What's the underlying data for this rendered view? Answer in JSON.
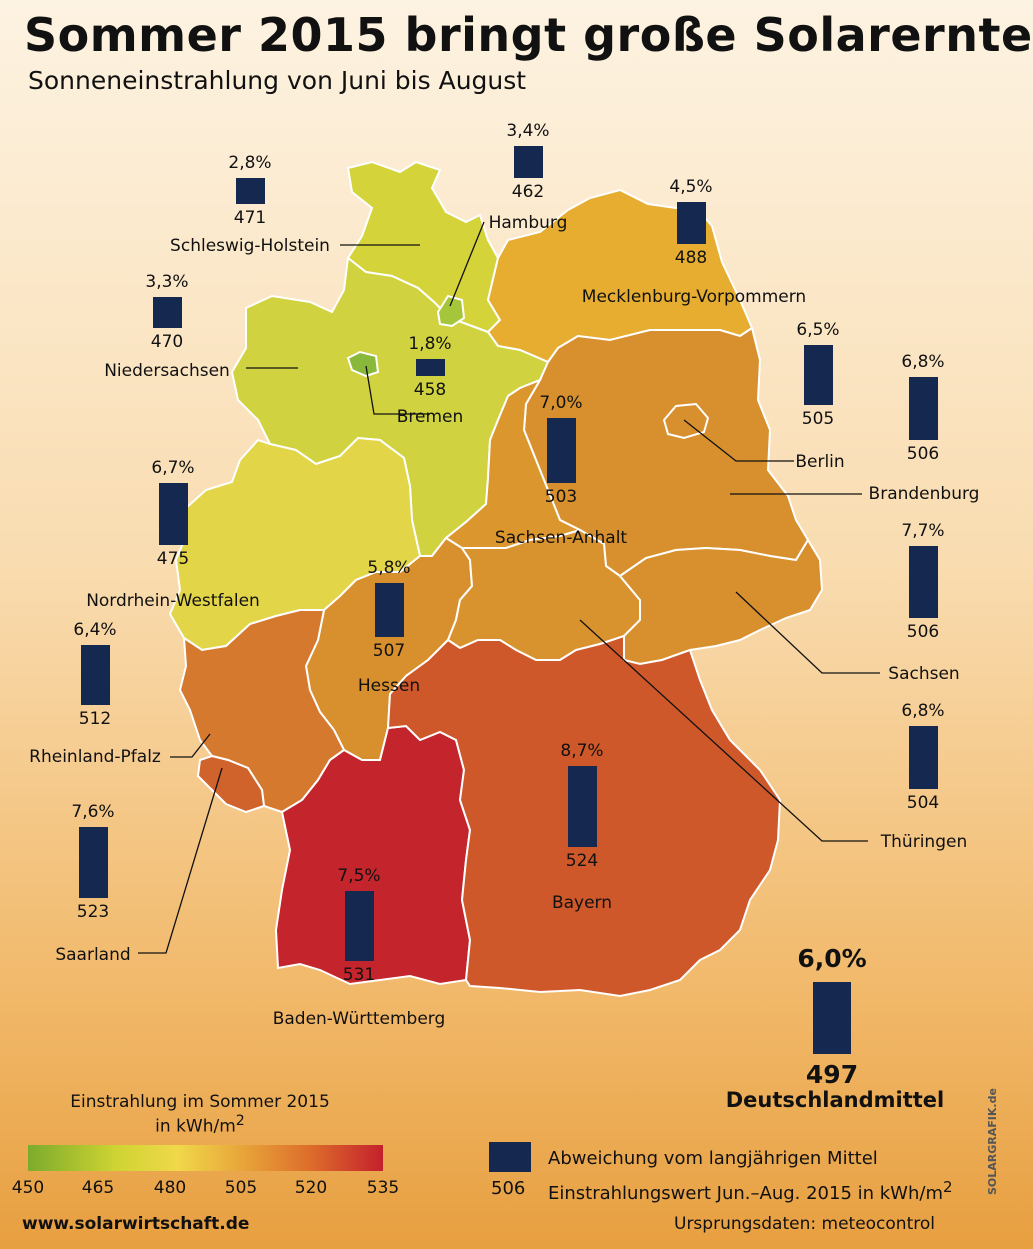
{
  "title": "Sommer 2015 bringt große Solarernte",
  "subtitle": "Sonneneinstrahlung von Juni bis August",
  "regions": [
    {
      "id": "sh",
      "name": "Schleswig-Holstein",
      "value": "471",
      "pct": "2,8%",
      "deviation": 2.8,
      "color": "#d4d33a"
    },
    {
      "id": "hh",
      "name": "Hamburg",
      "value": "462",
      "pct": "3,4%",
      "deviation": 3.4,
      "color": "#a5c63a"
    },
    {
      "id": "mv",
      "name": "Mecklenburg-Vorpommern",
      "value": "488",
      "pct": "4,5%",
      "deviation": 4.5,
      "color": "#e6ad30"
    },
    {
      "id": "ni",
      "name": "Niedersachsen",
      "value": "470",
      "pct": "3,3%",
      "deviation": 3.3,
      "color": "#d0d33f"
    },
    {
      "id": "hb",
      "name": "Bremen",
      "value": "458",
      "pct": "1,8%",
      "deviation": 1.8,
      "color": "#8ab83a"
    },
    {
      "id": "be",
      "name": "Berlin",
      "value": "505",
      "pct": "6,5%",
      "deviation": 6.5,
      "color": "#d8902f"
    },
    {
      "id": "bb",
      "name": "Brandenburg",
      "value": "506",
      "pct": "6,8%",
      "deviation": 6.8,
      "color": "#d8902f"
    },
    {
      "id": "st",
      "name": "Sachsen-Anhalt",
      "value": "503",
      "pct": "7,0%",
      "deviation": 7.0,
      "color": "#dc962e"
    },
    {
      "id": "nw",
      "name": "Nordrhein-Westfalen",
      "value": "475",
      "pct": "6,7%",
      "deviation": 6.7,
      "color": "#e3d548"
    },
    {
      "id": "he",
      "name": "Hessen",
      "value": "507",
      "pct": "5,8%",
      "deviation": 5.8,
      "color": "#d8902f"
    },
    {
      "id": "sn",
      "name": "Sachsen",
      "value": "506",
      "pct": "7,7%",
      "deviation": 7.7,
      "color": "#d8902f"
    },
    {
      "id": "rp",
      "name": "Rheinland-Pfalz",
      "value": "512",
      "pct": "6,4%",
      "deviation": 6.4,
      "color": "#d5792e"
    },
    {
      "id": "th",
      "name": "Thüringen",
      "value": "504",
      "pct": "6,8%",
      "deviation": 6.8,
      "color": "#d8932f"
    },
    {
      "id": "sl",
      "name": "Saarland",
      "value": "523",
      "pct": "7,6%",
      "deviation": 7.6,
      "color": "#d0622c"
    },
    {
      "id": "by",
      "name": "Bayern",
      "value": "524",
      "pct": "8,7%",
      "deviation": 8.7,
      "color": "#cf582b"
    },
    {
      "id": "bw",
      "name": "Baden-Württemberg",
      "value": "531",
      "pct": "7,5%",
      "deviation": 7.5,
      "color": "#c4242b"
    }
  ],
  "national": {
    "name": "Deutschlandmittel",
    "value": "497",
    "pct": "6,0%",
    "deviation": 6.0
  },
  "legend": {
    "title_line1": "Einstrahlung im Sommer 2015",
    "title_line2": "in kWh/m",
    "title_sup": "2",
    "ticks": [
      "450",
      "465",
      "480",
      "505",
      "520",
      "535"
    ],
    "key_text1": "Abweichung vom langjährigen Mittel",
    "key_value": "506",
    "key_text2": "Einstrahlungswert Jun.–Aug. 2015 in kWh/m",
    "key_sup": "2"
  },
  "footer": {
    "website": "www.solarwirtschaft.de",
    "source": "Ursprungsdaten: meteocontrol",
    "credit": "SOLARGRAFIK.de"
  }
}
